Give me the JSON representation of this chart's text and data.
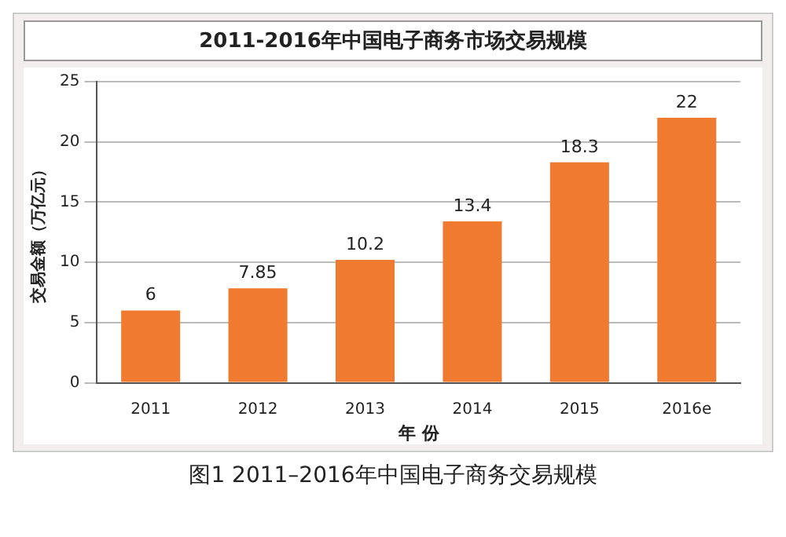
{
  "chart_data": {
    "type": "bar",
    "title": "2011-2016年中国电子商务市场交易规模",
    "xlabel": "年 份",
    "ylabel": "交易金额（万亿元）",
    "categories": [
      "2011",
      "2012",
      "2013",
      "2014",
      "2015",
      "2016e"
    ],
    "values": [
      6,
      7.85,
      10.2,
      13.4,
      18.3,
      22
    ],
    "color": "#ef7a30",
    "ylim": [
      0,
      25
    ],
    "yticks": [
      0,
      5,
      10,
      15,
      20,
      25
    ],
    "grid": "y",
    "data_labels": true,
    "annotations": [
      "图1  2011–2016年中国电子商务交易规模"
    ]
  }
}
